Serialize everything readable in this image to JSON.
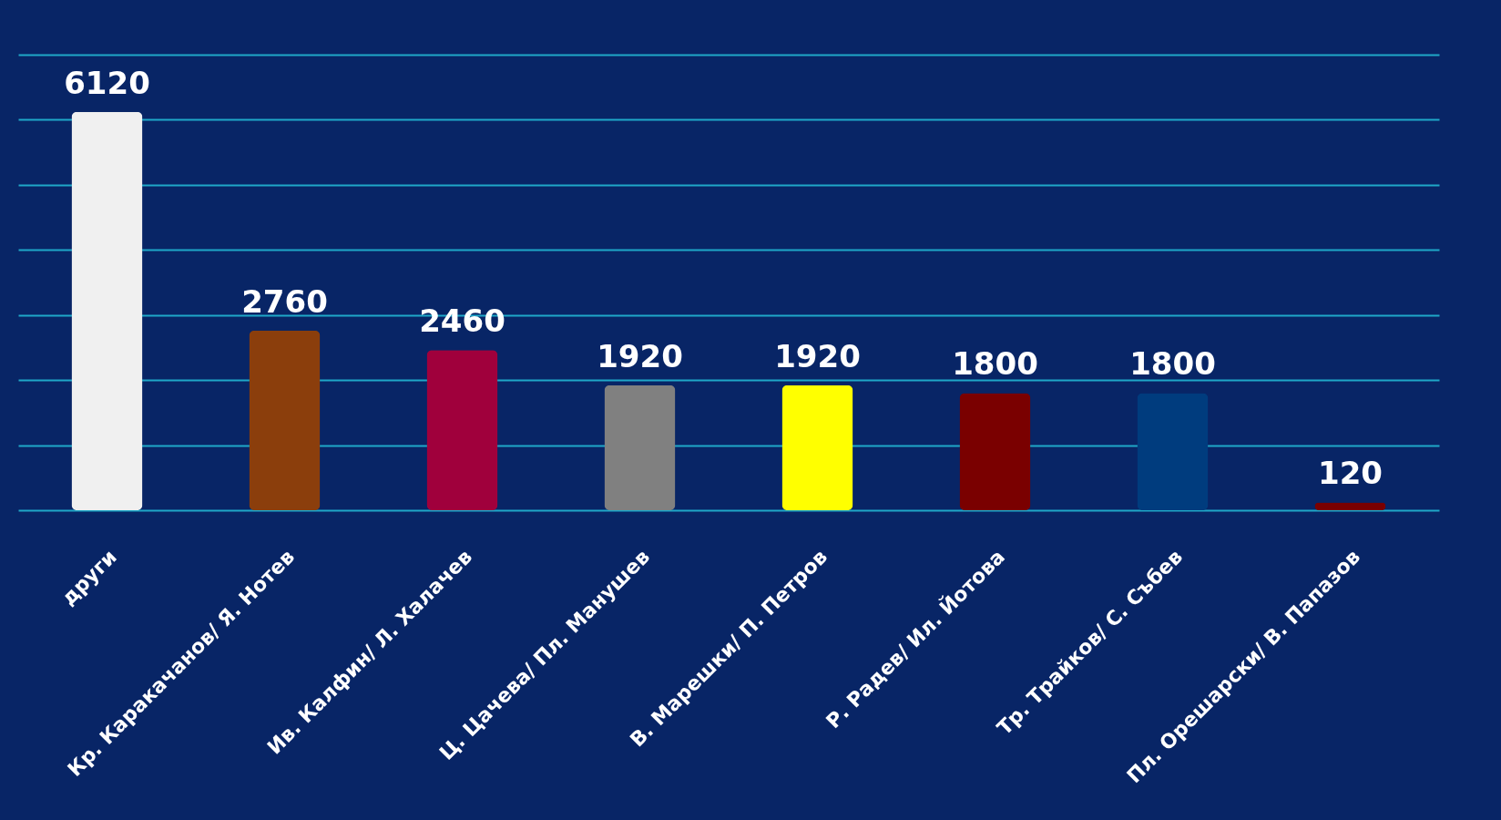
{
  "chart_data": {
    "type": "bar",
    "categories": [
      "други",
      "Кр. Каракачанов/ Я. Нотев",
      "Ив. Калфин/ Л. Халачев",
      "Ц. Цачева/ Пл. Манушев",
      "В. Марешки/ П. Петров",
      "Р. Радев/ Ил. Йотова",
      "Тр. Трайков/ С. Събев",
      "Пл. Орешарски/ В. Папазов"
    ],
    "values": [
      6120,
      2760,
      2460,
      1920,
      1920,
      1800,
      1800,
      120
    ],
    "colors": [
      "#f0f0f0",
      "#8b3e0c",
      "#a0003c",
      "#808080",
      "#ffff00",
      "#7a0000",
      "#003c7e",
      "#7a0000"
    ],
    "ylim": [
      0,
      7000
    ],
    "yticks": [
      0,
      1000,
      2000,
      3000,
      4000,
      5000,
      6000,
      7000
    ],
    "grid": "y",
    "tick_labels": "x",
    "data_labels": true
  }
}
